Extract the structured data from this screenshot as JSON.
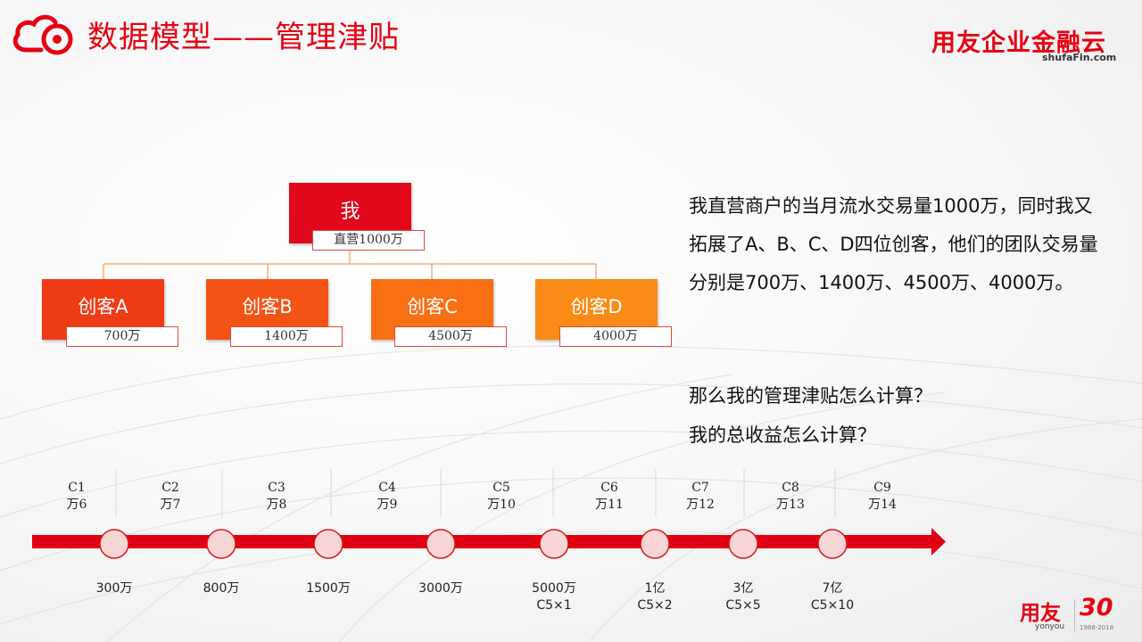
{
  "header": {
    "title": "数据模型——管理津贴",
    "brand": "用友企业金融云",
    "brand_sub": "shufaFin.com",
    "accent_color": "#e60012",
    "logo_icon": "cloud-target-icon"
  },
  "tree": {
    "root": {
      "label": "我",
      "volume": "直营1000万"
    },
    "children": [
      {
        "label": "创客A",
        "volume": "700万"
      },
      {
        "label": "创客B",
        "volume": "1400万"
      },
      {
        "label": "创客C",
        "volume": "4500万"
      },
      {
        "label": "创客D",
        "volume": "4000万"
      }
    ]
  },
  "description": "我直营商户的当月流水交易量1000万，同时我又拓展了A、B、C、D四位创客，他们的团队交易量分别是700万、1400万、4500万、4000万。",
  "questions": {
    "q1": "那么我的管理津贴怎么计算？",
    "q2": "我的总收益怎么计算？"
  },
  "timeline": {
    "levels": [
      {
        "code": "C1",
        "reward": "万6"
      },
      {
        "code": "C2",
        "reward": "万7"
      },
      {
        "code": "C3",
        "reward": "万8"
      },
      {
        "code": "C4",
        "reward": "万9"
      },
      {
        "code": "C5",
        "reward": "万10"
      },
      {
        "code": "C6",
        "reward": "万11"
      },
      {
        "code": "C7",
        "reward": "万12"
      },
      {
        "code": "C8",
        "reward": "万13"
      },
      {
        "code": "C9",
        "reward": "万14"
      }
    ],
    "thresholds": [
      {
        "amount": "300万",
        "note": ""
      },
      {
        "amount": "800万",
        "note": ""
      },
      {
        "amount": "1500万",
        "note": ""
      },
      {
        "amount": "3000万",
        "note": ""
      },
      {
        "amount": "5000万",
        "note": "C5×1"
      },
      {
        "amount": "1亿",
        "note": "C5×2"
      },
      {
        "amount": "3亿",
        "note": "C5×5"
      },
      {
        "amount": "7亿",
        "note": "C5×10"
      }
    ]
  },
  "footer": {
    "logo": "用友",
    "logo_sub": "yonyou",
    "anniversary": "30",
    "years": "1988-2018"
  }
}
